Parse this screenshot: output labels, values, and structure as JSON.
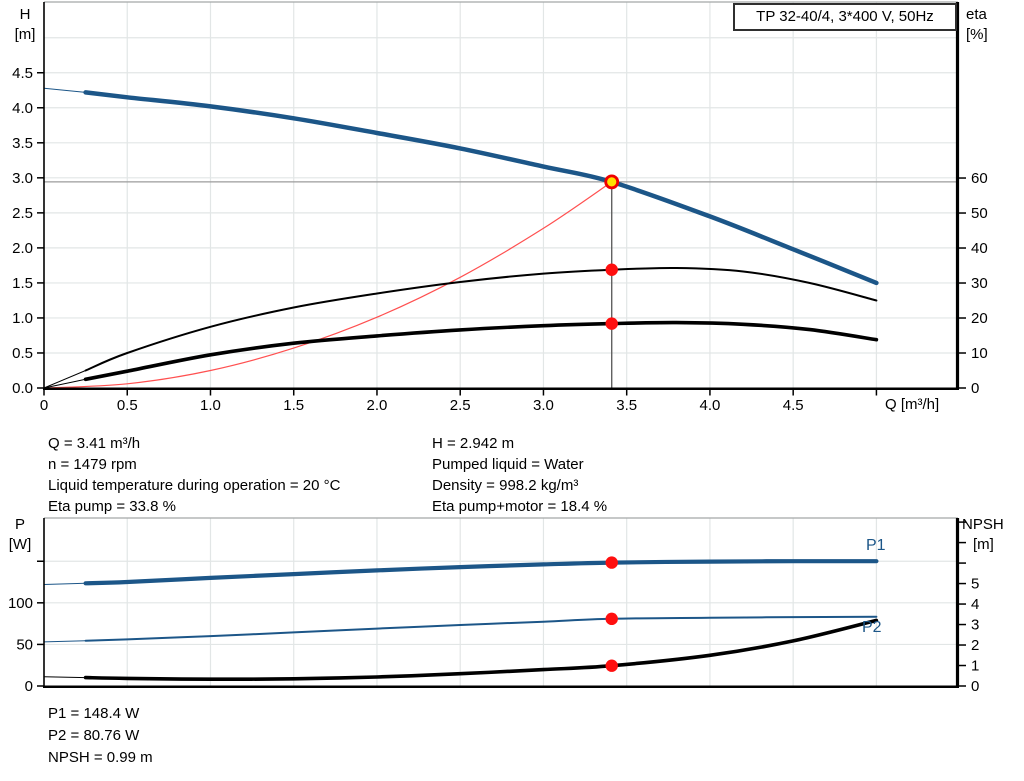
{
  "title_box": "TP 32-40/4, 3*400 V, 50Hz",
  "info_top_left": {
    "line1": "Q = 3.41 m³/h",
    "line2": "n = 1479 rpm",
    "line3": "Liquid temperature during operation = 20 °C",
    "line4": "Eta pump = 33.8 %"
  },
  "info_top_right": {
    "line1": "H = 2.942 m",
    "line2": "Pumped liquid = Water",
    "line3": "Density = 998.2 kg/m³",
    "line4": "Eta pump+motor = 18.4 %"
  },
  "info_bottom": {
    "line1": "P1 = 148.4 W",
    "line2": "P2 = 80.76 W",
    "line3": "NPSH = 0.99 m"
  },
  "curve_labels": {
    "p1": "P1",
    "p2": "P2"
  },
  "colors": {
    "curve_blue": "#1c5688",
    "black": "#000000",
    "dot_red": "#ff0f0f",
    "system_red": "#ff5050",
    "duty_yellow": "#ffe000",
    "duty_ring": "#f00000",
    "grid": "#e2e6e6",
    "border_gray": "#a4a8a8",
    "crosshair_v": "#606060",
    "crosshair_h": "#9c9c9c"
  },
  "chart_data": [
    {
      "id": "head-efficiency-chart",
      "type": "line",
      "x_axis": {
        "label": "Q [m³/h]",
        "min": 0,
        "max": 5.49,
        "ticks": [
          {
            "v": 0,
            "t": "0"
          },
          {
            "v": 0.5,
            "t": "0.5"
          },
          {
            "v": 1,
            "t": "1.0"
          },
          {
            "v": 1.5,
            "t": "1.5"
          },
          {
            "v": 2,
            "t": "2.0"
          },
          {
            "v": 2.5,
            "t": "2.5"
          },
          {
            "v": 3,
            "t": "3.0"
          },
          {
            "v": 3.5,
            "t": "3.5"
          },
          {
            "v": 4,
            "t": "4.0"
          },
          {
            "v": 4.5,
            "t": "4.5"
          },
          {
            "v": 5,
            "t": ""
          }
        ],
        "grid": [
          0.5,
          1,
          1.5,
          2,
          2.5,
          3,
          3.5,
          4,
          4.5,
          5
        ]
      },
      "y_left": {
        "label_line1": "H",
        "label_line2": "[m]",
        "min": 0,
        "max": 5.51,
        "ticks": [
          {
            "v": 0,
            "t": "0.0"
          },
          {
            "v": 0.5,
            "t": "0.5"
          },
          {
            "v": 1,
            "t": "1.0"
          },
          {
            "v": 1.5,
            "t": "1.5"
          },
          {
            "v": 2,
            "t": "2.0"
          },
          {
            "v": 2.5,
            "t": "2.5"
          },
          {
            "v": 3,
            "t": "3.0"
          },
          {
            "v": 3.5,
            "t": "3.5"
          },
          {
            "v": 4,
            "t": "4.0"
          },
          {
            "v": 4.5,
            "t": "4.5"
          }
        ],
        "grid": [
          0.5,
          1,
          1.5,
          2,
          2.5,
          3,
          3.5,
          4,
          4.5,
          5
        ]
      },
      "y_right": {
        "label_line1": "eta",
        "label_line2": "[%]",
        "min": 0,
        "max": 110.3,
        "ticks": [
          {
            "v": 0,
            "t": "0"
          },
          {
            "v": 10,
            "t": "10"
          },
          {
            "v": 20,
            "t": "20"
          },
          {
            "v": 30,
            "t": "30"
          },
          {
            "v": 40,
            "t": "40"
          },
          {
            "v": 50,
            "t": "50"
          },
          {
            "v": 60,
            "t": "60"
          }
        ]
      },
      "series": [
        {
          "name": "system-curve",
          "axis": "left",
          "color_key": "system_red",
          "width": 1.2,
          "q": [
            0,
            0.5,
            1,
            1.5,
            2,
            2.5,
            3,
            3.41
          ],
          "v": [
            0,
            0.06,
            0.25,
            0.57,
            1.01,
            1.58,
            2.28,
            2.942
          ]
        },
        {
          "name": "head-curve",
          "axis": "left",
          "color_key": "curve_blue",
          "width": 4.5,
          "thin_until": 0.25,
          "q": [
            0,
            0.25,
            0.5,
            1,
            1.5,
            2,
            2.5,
            3,
            3.41,
            4,
            4.5,
            5
          ],
          "v": [
            4.28,
            4.22,
            4.15,
            4.02,
            3.85,
            3.64,
            3.42,
            3.16,
            2.942,
            2.45,
            1.98,
            1.5
          ]
        },
        {
          "name": "eta-pump-curve",
          "axis": "right",
          "color_key": "black",
          "width": 2,
          "thin_until": 0.25,
          "q": [
            0,
            0.25,
            0.5,
            1,
            1.5,
            2,
            2.5,
            3,
            3.41,
            3.8,
            4.2,
            4.6,
            5
          ],
          "v": [
            0,
            5,
            10,
            17.5,
            23,
            27,
            30.3,
            32.7,
            33.8,
            34.3,
            33.3,
            30,
            25
          ]
        },
        {
          "name": "eta-pump-motor-curve",
          "axis": "right",
          "color_key": "black",
          "width": 3.6,
          "thin_until": 0.25,
          "q": [
            0,
            0.25,
            0.5,
            1,
            1.5,
            2,
            2.5,
            3,
            3.41,
            3.8,
            4.2,
            4.6,
            5
          ],
          "v": [
            0,
            2.5,
            4.8,
            9.5,
            12.8,
            14.9,
            16.6,
            17.8,
            18.4,
            18.7,
            18.2,
            16.7,
            13.8
          ]
        }
      ],
      "crosshair": {
        "q": 3.41,
        "axis": "left",
        "v": 2.942
      },
      "duty_point": {
        "q": 3.41,
        "axis": "left",
        "v": 2.942
      },
      "duty_dots": [
        {
          "q": 3.41,
          "axis": "right",
          "v": 33.8
        },
        {
          "q": 3.41,
          "axis": "right",
          "v": 18.4
        }
      ]
    },
    {
      "id": "power-npsh-chart",
      "type": "line",
      "x_axis": {
        "label": "",
        "min": 0,
        "max": 5.49,
        "ticks": [],
        "grid": [
          0.5,
          1,
          1.5,
          2,
          2.5,
          3,
          3.5,
          4,
          4.5,
          5
        ]
      },
      "y_left": {
        "label_line1": "P",
        "label_line2": "[W]",
        "min": 0,
        "max": 202,
        "ticks": [
          {
            "v": 0,
            "t": "0"
          },
          {
            "v": 50,
            "t": "50"
          },
          {
            "v": 100,
            "t": "100"
          },
          {
            "v": 150,
            "t": ""
          }
        ],
        "grid": [
          50,
          100,
          150
        ]
      },
      "y_right": {
        "label_line1": "NPSH",
        "label_line2": "[m]",
        "min": 0,
        "max": 8.2,
        "ticks": [
          {
            "v": 0,
            "t": "0"
          },
          {
            "v": 1,
            "t": "1"
          },
          {
            "v": 2,
            "t": "2"
          },
          {
            "v": 3,
            "t": "3"
          },
          {
            "v": 4,
            "t": "4"
          },
          {
            "v": 5,
            "t": "5"
          },
          {
            "v": 6,
            "t": ""
          },
          {
            "v": 7,
            "t": ""
          },
          {
            "v": 8,
            "t": ""
          }
        ]
      },
      "series": [
        {
          "name": "p1-power-curve",
          "axis": "left",
          "color_key": "curve_blue",
          "width": 4.2,
          "thin_until": 0.25,
          "q": [
            0,
            0.25,
            0.5,
            1,
            1.5,
            2,
            2.5,
            3,
            3.41,
            4,
            4.5,
            5
          ],
          "v": [
            122,
            123.5,
            125,
            130,
            134.5,
            139,
            143,
            146.2,
            148.4,
            149.6,
            150,
            150
          ]
        },
        {
          "name": "p2-power-curve",
          "axis": "left",
          "color_key": "curve_blue",
          "width": 2,
          "thin_until": 0.25,
          "q": [
            0,
            0.25,
            0.5,
            1,
            1.5,
            2,
            2.5,
            3,
            3.41,
            4,
            4.5,
            5
          ],
          "v": [
            53,
            54.5,
            56,
            60,
            64.5,
            69,
            73.3,
            77.3,
            80.76,
            82,
            82.8,
            83.2
          ]
        },
        {
          "name": "npsh-curve",
          "axis": "right",
          "color_key": "black",
          "width": 3.6,
          "thin_until": 0.25,
          "q": [
            0,
            0.25,
            0.5,
            1,
            1.5,
            2,
            2.5,
            3,
            3.41,
            4,
            4.5,
            5
          ],
          "v": [
            0.45,
            0.41,
            0.37,
            0.33,
            0.35,
            0.44,
            0.6,
            0.8,
            0.99,
            1.5,
            2.2,
            3.2
          ]
        }
      ],
      "duty_dots": [
        {
          "q": 3.41,
          "axis": "left",
          "v": 148.4
        },
        {
          "q": 3.41,
          "axis": "left",
          "v": 80.76
        },
        {
          "q": 3.41,
          "axis": "right",
          "v": 0.99
        }
      ]
    }
  ]
}
